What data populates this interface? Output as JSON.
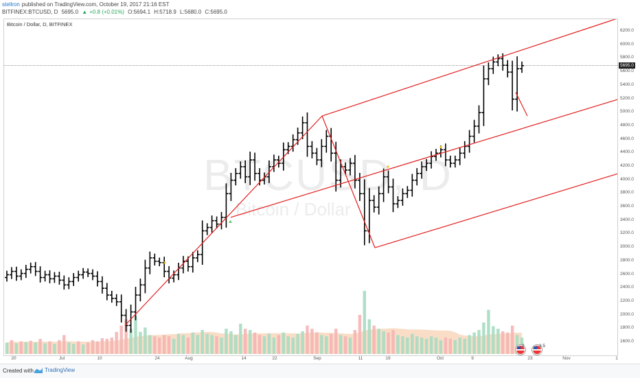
{
  "header": {
    "author": "stellron",
    "published_text": "published on TradingView.com, October 19, 2017 21:16 EST",
    "symbol": "BITFINEX:BTCUSD, D",
    "last": "5695.0",
    "change": "+0.8 (+0.01%)",
    "open": "O:5694.1",
    "high": "H:5718.9",
    "low": "L:5680.0",
    "close": "C:5695.0"
  },
  "chart_title": "Bitcoin / Dollar, D, BITFINEX",
  "watermark": {
    "symbol": "BTCUSD, D",
    "description": "Bitcoin / Dollar"
  },
  "current_price_label": "5695.0",
  "footer": {
    "created_with": "Created with",
    "brand": "TradingView"
  },
  "events": {
    "us_earnings_count": "2",
    "us_dividends_count": "3.5"
  },
  "colors": {
    "up_volume": "#a6dcc1",
    "down_volume": "#f5b4b4",
    "trend_lines": "#e21d1d",
    "bars": "#000000"
  },
  "chart_data": {
    "type": "ohlc",
    "title": "Bitcoin / Dollar, D, BITFINEX",
    "xlabel": "",
    "ylabel": "",
    "ylim": [
      1400,
      6300
    ],
    "price_ticks": [
      "6200.0",
      "6000.0",
      "5800.0",
      "5600.0",
      "5400.0",
      "5200.0",
      "5000.0",
      "4800.0",
      "4600.0",
      "4400.0",
      "4200.0",
      "4000.0",
      "3800.0",
      "3600.0",
      "3400.0",
      "3200.0",
      "3000.0",
      "2800.0",
      "2600.0",
      "2400.0",
      "2200.0",
      "2000.0",
      "1800.0",
      "1600.0"
    ],
    "time_ticks": [
      "20",
      "Jul",
      "10",
      "24",
      "Aug",
      "14",
      "22",
      "Sep",
      "11",
      "19",
      "Oct",
      "9",
      "23",
      "Nov",
      "1"
    ],
    "closes": [
      2600,
      2650,
      2580,
      2620,
      2680,
      2720,
      2650,
      2560,
      2600,
      2540,
      2580,
      2520,
      2450,
      2500,
      2560,
      2600,
      2640,
      2620,
      2580,
      2500,
      2400,
      2300,
      2250,
      2200,
      2000,
      1850,
      2050,
      2300,
      2450,
      2700,
      2850,
      2800,
      2780,
      2650,
      2550,
      2600,
      2700,
      2800,
      2720,
      2850,
      2900,
      3250,
      3300,
      3400,
      3350,
      3450,
      3800,
      4000,
      4100,
      4200,
      4050,
      4300,
      4100,
      4000,
      4050,
      4200,
      4300,
      4250,
      4450,
      4500,
      4600,
      4700,
      4850,
      4500,
      4400,
      4300,
      4500,
      4650,
      4400,
      4000,
      4200,
      4150,
      4250,
      4000,
      3800,
      3250,
      3700,
      3600,
      3800,
      4050,
      3900,
      3650,
      3700,
      3800,
      3850,
      4000,
      4100,
      4200,
      4250,
      4350,
      4400,
      4450,
      4300,
      4250,
      4300,
      4400,
      4500,
      4650,
      4800,
      5000,
      5500,
      5650,
      5750,
      5800,
      5700,
      5600,
      5200,
      5650,
      5695
    ],
    "volume": [
      {
        "v": 18,
        "up": true
      },
      {
        "v": 22,
        "up": false
      },
      {
        "v": 17,
        "up": true
      },
      {
        "v": 20,
        "up": false
      },
      {
        "v": 19,
        "up": true
      },
      {
        "v": 21,
        "up": false
      },
      {
        "v": 18,
        "up": true
      },
      {
        "v": 24,
        "up": false
      },
      {
        "v": 17,
        "up": true
      },
      {
        "v": 20,
        "up": false
      },
      {
        "v": 16,
        "up": true
      },
      {
        "v": 22,
        "up": false
      },
      {
        "v": 30,
        "up": false
      },
      {
        "v": 18,
        "up": true
      },
      {
        "v": 16,
        "up": true
      },
      {
        "v": 20,
        "up": false
      },
      {
        "v": 15,
        "up": true
      },
      {
        "v": 18,
        "up": false
      },
      {
        "v": 22,
        "up": false
      },
      {
        "v": 20,
        "up": false
      },
      {
        "v": 25,
        "up": false
      },
      {
        "v": 24,
        "up": false
      },
      {
        "v": 26,
        "up": false
      },
      {
        "v": 35,
        "up": false
      },
      {
        "v": 45,
        "up": false
      },
      {
        "v": 55,
        "up": false
      },
      {
        "v": 40,
        "up": true
      },
      {
        "v": 60,
        "up": true
      },
      {
        "v": 35,
        "up": true
      },
      {
        "v": 42,
        "up": true
      },
      {
        "v": 30,
        "up": true
      },
      {
        "v": 28,
        "up": false
      },
      {
        "v": 26,
        "up": false
      },
      {
        "v": 30,
        "up": false
      },
      {
        "v": 28,
        "up": false
      },
      {
        "v": 24,
        "up": true
      },
      {
        "v": 32,
        "up": true
      },
      {
        "v": 30,
        "up": true
      },
      {
        "v": 26,
        "up": false
      },
      {
        "v": 34,
        "up": true
      },
      {
        "v": 30,
        "up": true
      },
      {
        "v": 38,
        "up": true
      },
      {
        "v": 32,
        "up": true
      },
      {
        "v": 30,
        "up": true
      },
      {
        "v": 28,
        "up": false
      },
      {
        "v": 26,
        "up": true
      },
      {
        "v": 40,
        "up": true
      },
      {
        "v": 36,
        "up": true
      },
      {
        "v": 30,
        "up": true
      },
      {
        "v": 48,
        "up": true
      },
      {
        "v": 40,
        "up": false
      },
      {
        "v": 38,
        "up": true
      },
      {
        "v": 34,
        "up": false
      },
      {
        "v": 30,
        "up": false
      },
      {
        "v": 28,
        "up": true
      },
      {
        "v": 32,
        "up": true
      },
      {
        "v": 26,
        "up": true
      },
      {
        "v": 30,
        "up": false
      },
      {
        "v": 34,
        "up": true
      },
      {
        "v": 28,
        "up": true
      },
      {
        "v": 26,
        "up": true
      },
      {
        "v": 32,
        "up": true
      },
      {
        "v": 36,
        "up": true
      },
      {
        "v": 45,
        "up": false
      },
      {
        "v": 40,
        "up": false
      },
      {
        "v": 34,
        "up": false
      },
      {
        "v": 30,
        "up": true
      },
      {
        "v": 28,
        "up": true
      },
      {
        "v": 32,
        "up": false
      },
      {
        "v": 40,
        "up": false
      },
      {
        "v": 30,
        "up": true
      },
      {
        "v": 28,
        "up": false
      },
      {
        "v": 26,
        "up": true
      },
      {
        "v": 38,
        "up": false
      },
      {
        "v": 62,
        "up": false
      },
      {
        "v": 100,
        "up": true
      },
      {
        "v": 55,
        "up": true
      },
      {
        "v": 45,
        "up": false
      },
      {
        "v": 40,
        "up": true
      },
      {
        "v": 36,
        "up": true
      },
      {
        "v": 34,
        "up": false
      },
      {
        "v": 38,
        "up": false
      },
      {
        "v": 30,
        "up": true
      },
      {
        "v": 28,
        "up": true
      },
      {
        "v": 26,
        "up": true
      },
      {
        "v": 32,
        "up": true
      },
      {
        "v": 28,
        "up": true
      },
      {
        "v": 26,
        "up": true
      },
      {
        "v": 24,
        "up": true
      },
      {
        "v": 28,
        "up": true
      },
      {
        "v": 26,
        "up": true
      },
      {
        "v": 22,
        "up": true
      },
      {
        "v": 26,
        "up": false
      },
      {
        "v": 24,
        "up": false
      },
      {
        "v": 22,
        "up": true
      },
      {
        "v": 26,
        "up": true
      },
      {
        "v": 24,
        "up": true
      },
      {
        "v": 30,
        "up": true
      },
      {
        "v": 34,
        "up": true
      },
      {
        "v": 38,
        "up": true
      },
      {
        "v": 50,
        "up": true
      },
      {
        "v": 70,
        "up": true
      },
      {
        "v": 44,
        "up": true
      },
      {
        "v": 40,
        "up": true
      },
      {
        "v": 36,
        "up": false
      },
      {
        "v": 34,
        "up": false
      },
      {
        "v": 45,
        "up": false
      },
      {
        "v": 30,
        "up": true
      },
      {
        "v": 26,
        "up": true
      }
    ]
  }
}
